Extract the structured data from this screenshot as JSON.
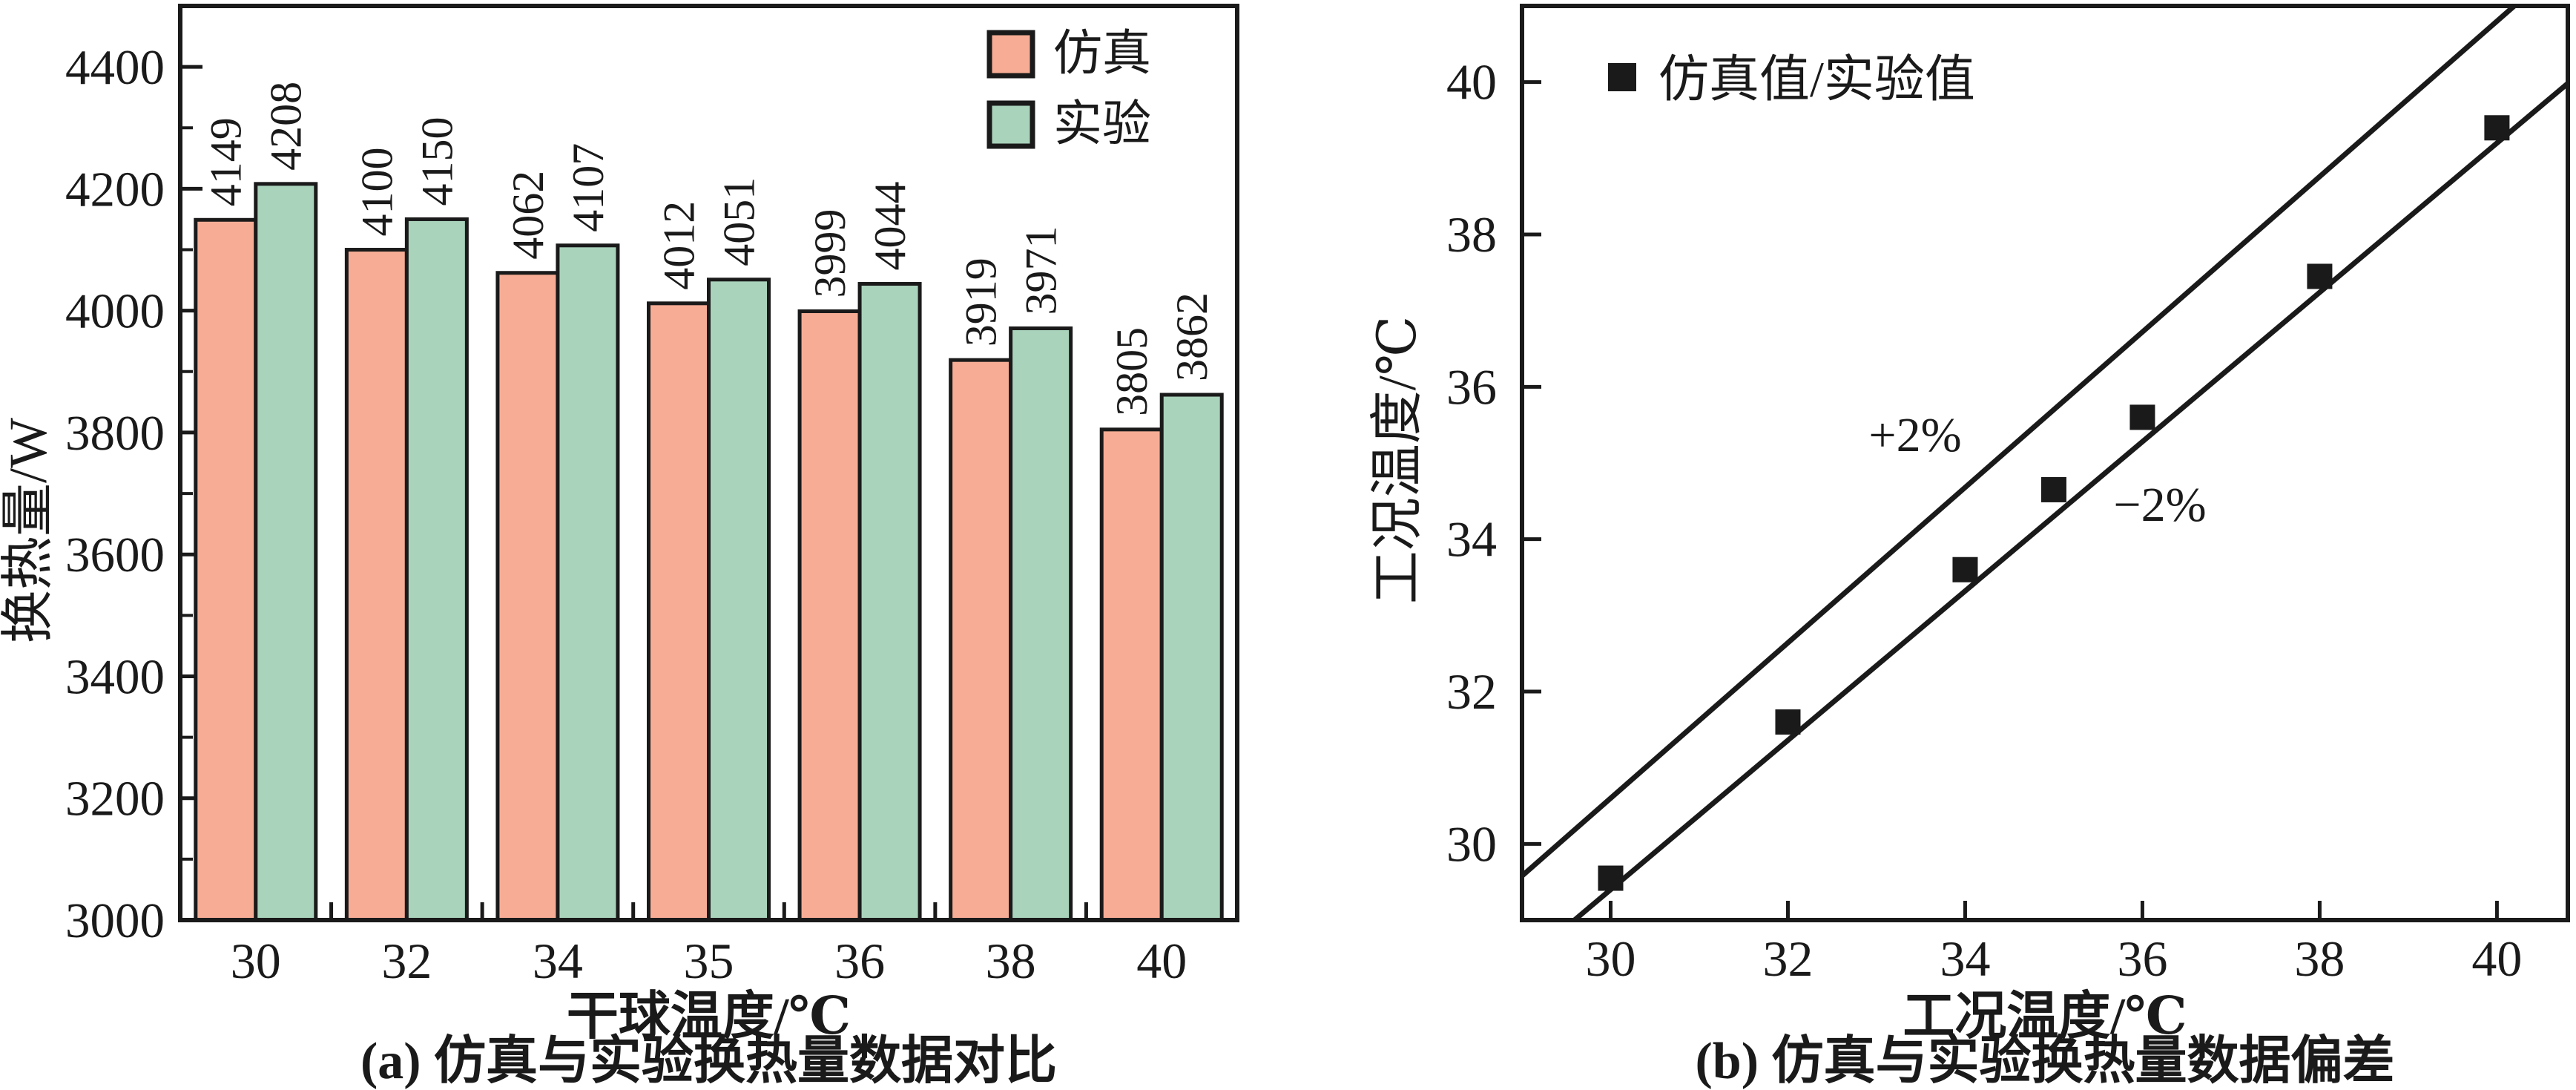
{
  "page": {
    "background": "#ffffff",
    "ink": "#1a1a1a"
  },
  "chart_data": [
    {
      "id": "a",
      "type": "bar",
      "caption": "(a) 仿真与实验换热量数据对比",
      "xlabel": "干球温度/℃",
      "ylabel": "换热量/W",
      "categories": [
        "30",
        "32",
        "34",
        "35",
        "36",
        "38",
        "40"
      ],
      "series": [
        {
          "name": "仿真",
          "color": "#F7AD95",
          "values": [
            4149,
            4100,
            4062,
            4012,
            3999,
            3919,
            3805
          ]
        },
        {
          "name": "实验",
          "color": "#AAD3BC",
          "values": [
            4208,
            4150,
            4107,
            4051,
            4044,
            3971,
            3862
          ]
        }
      ],
      "ylim": [
        3000,
        4500
      ],
      "yticks": [
        3000,
        3200,
        3400,
        3600,
        3800,
        4000,
        4200,
        4400
      ],
      "minor_ytick_step": 100,
      "bar_value_labels_rotated": true,
      "legend_position": "top-right",
      "grid": false
    },
    {
      "id": "b",
      "type": "scatter",
      "caption": "(b) 仿真与实验换热量数据偏差",
      "xlabel": "工况温度/℃",
      "ylabel": "工况温度/℃",
      "legend_label": "仿真值/实验值",
      "marker": "filled-square",
      "marker_color": "#1a1a1a",
      "points": [
        {
          "x": 30,
          "y": 29.55
        },
        {
          "x": 32,
          "y": 31.6
        },
        {
          "x": 34,
          "y": 33.6
        },
        {
          "x": 35,
          "y": 34.65
        },
        {
          "x": 36,
          "y": 35.6
        },
        {
          "x": 38,
          "y": 37.45
        },
        {
          "x": 40,
          "y": 39.4
        }
      ],
      "reference_lines": [
        {
          "label": "+2%",
          "slope": 1.02
        },
        {
          "label": "−2%",
          "slope": 0.98
        }
      ],
      "xlim": [
        29,
        40.8
      ],
      "ylim": [
        29,
        41
      ],
      "xticks": [
        30,
        32,
        34,
        36,
        38,
        40
      ],
      "yticks": [
        30,
        32,
        34,
        36,
        38,
        40
      ],
      "grid": false
    }
  ]
}
